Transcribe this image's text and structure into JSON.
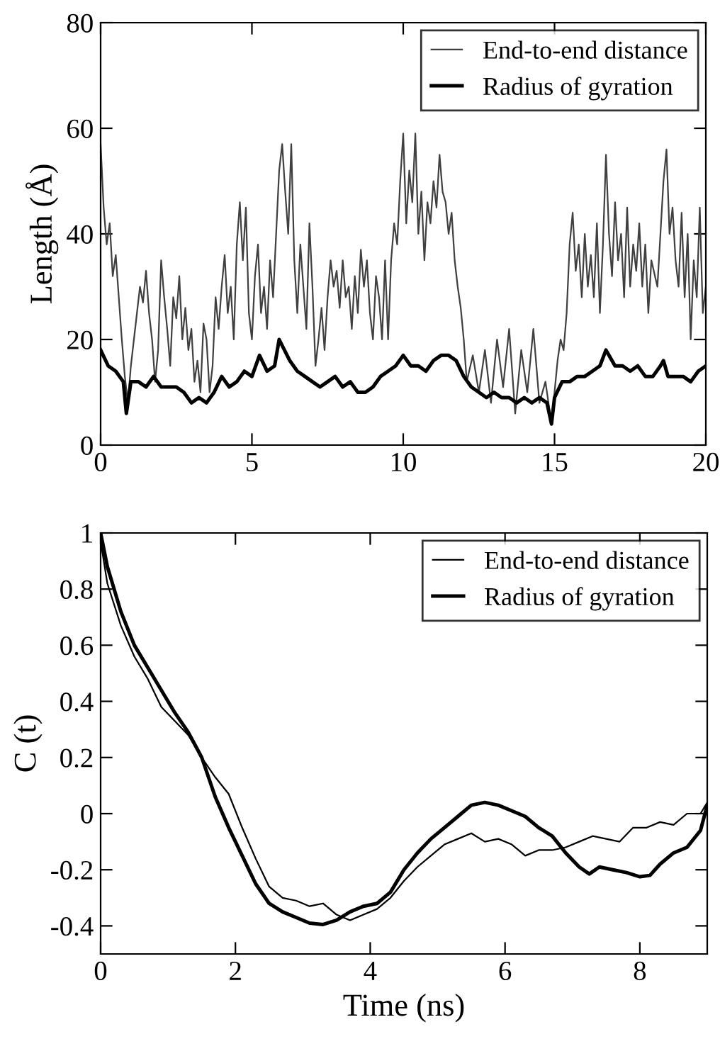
{
  "chart_data": [
    {
      "type": "line",
      "ylabel": "Length (Å)",
      "xlim": [
        0,
        20
      ],
      "ylim": [
        0,
        80
      ],
      "xticks": [
        0,
        5,
        10,
        15,
        20
      ],
      "yticks": [
        0,
        20,
        40,
        60,
        80
      ],
      "legend": "top right",
      "grid": false,
      "series": [
        {
          "name": "End-to-end distance",
          "color": "#404040",
          "x": [
            0,
            0.1,
            0.2,
            0.3,
            0.4,
            0.5,
            0.6,
            0.7,
            0.8,
            0.9,
            1.0,
            1.1,
            1.2,
            1.3,
            1.4,
            1.5,
            1.6,
            1.7,
            1.8,
            1.9,
            2.0,
            2.1,
            2.2,
            2.3,
            2.4,
            2.5,
            2.6,
            2.7,
            2.8,
            2.9,
            3.0,
            3.1,
            3.2,
            3.3,
            3.4,
            3.5,
            3.6,
            3.7,
            3.8,
            3.9,
            4.0,
            4.1,
            4.2,
            4.3,
            4.4,
            4.5,
            4.6,
            4.7,
            4.8,
            4.9,
            5.0,
            5.1,
            5.2,
            5.3,
            5.4,
            5.5,
            5.6,
            5.7,
            5.8,
            5.9,
            6.0,
            6.1,
            6.2,
            6.3,
            6.4,
            6.5,
            6.6,
            6.7,
            6.8,
            6.9,
            7.0,
            7.1,
            7.2,
            7.3,
            7.4,
            7.5,
            7.6,
            7.7,
            7.8,
            7.9,
            8.0,
            8.1,
            8.2,
            8.3,
            8.4,
            8.5,
            8.6,
            8.7,
            8.8,
            8.9,
            9.0,
            9.1,
            9.2,
            9.3,
            9.4,
            9.5,
            9.6,
            9.7,
            9.8,
            9.9,
            10.0,
            10.1,
            10.2,
            10.3,
            10.4,
            10.5,
            10.6,
            10.7,
            10.8,
            10.9,
            11.0,
            11.1,
            11.2,
            11.3,
            11.4,
            11.5,
            11.6,
            11.7,
            11.8,
            11.9,
            12.0,
            12.1,
            12.3,
            12.5,
            12.7,
            12.9,
            13.1,
            13.3,
            13.5,
            13.7,
            13.9,
            14.1,
            14.3,
            14.5,
            14.7,
            14.9,
            15.0,
            15.1,
            15.2,
            15.3,
            15.4,
            15.5,
            15.6,
            15.7,
            15.8,
            15.9,
            16.0,
            16.1,
            16.2,
            16.3,
            16.4,
            16.5,
            16.6,
            16.7,
            16.8,
            16.9,
            17.0,
            17.1,
            17.2,
            17.3,
            17.4,
            17.5,
            17.6,
            17.7,
            17.8,
            17.9,
            18.0,
            18.1,
            18.2,
            18.4,
            18.6,
            18.7,
            18.8,
            18.9,
            19.0,
            19.1,
            19.2,
            19.3,
            19.4,
            19.5,
            19.6,
            19.7,
            19.8,
            19.9,
            20.0
          ],
          "values": [
            57,
            45,
            38,
            42,
            32,
            36,
            28,
            20,
            13,
            8,
            15,
            20,
            25,
            30,
            27,
            33,
            25,
            20,
            12,
            18,
            35,
            28,
            22,
            15,
            28,
            24,
            32,
            20,
            26,
            18,
            22,
            12,
            16,
            10,
            23,
            20,
            10,
            15,
            28,
            22,
            30,
            36,
            25,
            30,
            20,
            38,
            46,
            35,
            45,
            25,
            20,
            32,
            38,
            25,
            30,
            22,
            35,
            28,
            40,
            52,
            57,
            48,
            40,
            57,
            35,
            25,
            38,
            30,
            22,
            42,
            30,
            15,
            20,
            26,
            18,
            28,
            35,
            30,
            33,
            26,
            35,
            28,
            30,
            22,
            32,
            25,
            37,
            30,
            35,
            25,
            20,
            32,
            28,
            20,
            35,
            20,
            35,
            42,
            38,
            50,
            59,
            42,
            52,
            46,
            59,
            40,
            48,
            35,
            46,
            42,
            50,
            45,
            55,
            48,
            46,
            40,
            44,
            35,
            30,
            26,
            20,
            12,
            17,
            10,
            18,
            8,
            20,
            11,
            22,
            6,
            18,
            10,
            22,
            8,
            12,
            4,
            10,
            16,
            20,
            18,
            25,
            38,
            44,
            33,
            38,
            28,
            40,
            30,
            36,
            28,
            42,
            25,
            38,
            55,
            40,
            32,
            46,
            35,
            40,
            28,
            45,
            30,
            38,
            33,
            42,
            30,
            38,
            25,
            35,
            30,
            50,
            56,
            40,
            45,
            35,
            30,
            44,
            28,
            40,
            20,
            35,
            28,
            45,
            25,
            30
          ]
        },
        {
          "name": "Radius of gyration",
          "color": "#000000",
          "x": [
            0,
            0.25,
            0.5,
            0.75,
            0.85,
            1.0,
            1.25,
            1.5,
            1.75,
            2.0,
            2.25,
            2.5,
            2.75,
            3.0,
            3.25,
            3.5,
            3.75,
            4.0,
            4.25,
            4.5,
            4.75,
            5.0,
            5.25,
            5.5,
            5.75,
            5.9,
            6.25,
            6.5,
            6.75,
            7.0,
            7.25,
            7.5,
            7.75,
            8.0,
            8.25,
            8.5,
            8.75,
            9.0,
            9.25,
            9.5,
            9.75,
            10.0,
            10.25,
            10.5,
            10.75,
            11.0,
            11.25,
            11.5,
            11.75,
            12.0,
            12.25,
            12.5,
            12.75,
            13.0,
            13.25,
            13.5,
            13.75,
            14.0,
            14.25,
            14.5,
            14.75,
            14.9,
            15.0,
            15.25,
            15.5,
            15.75,
            16.0,
            16.25,
            16.5,
            16.7,
            17.0,
            17.25,
            17.5,
            17.75,
            18.0,
            18.25,
            18.5,
            18.6,
            18.75,
            19.0,
            19.25,
            19.5,
            19.75,
            20
          ],
          "values": [
            18,
            15,
            14,
            12,
            6,
            12,
            12,
            11,
            13,
            11,
            11,
            11,
            10,
            8,
            9,
            8,
            10,
            13,
            11,
            12,
            14,
            13,
            17,
            14,
            15,
            20,
            16,
            14,
            13,
            12,
            11,
            12,
            13,
            11,
            12,
            10,
            10,
            11,
            13,
            14,
            15,
            17,
            15,
            15,
            14,
            16,
            17,
            17,
            16,
            13,
            11,
            10,
            9,
            10,
            9,
            9,
            8,
            9,
            8,
            9,
            8,
            4,
            9,
            12,
            12,
            13,
            13,
            14,
            15,
            18,
            15,
            15,
            14,
            15,
            13,
            13,
            15,
            16,
            13,
            13,
            13,
            12,
            14,
            15
          ]
        }
      ]
    },
    {
      "type": "line",
      "xlabel": "Time (ns)",
      "ylabel": "C (t)",
      "xlim": [
        0,
        9
      ],
      "ylim": [
        -0.5,
        1
      ],
      "xticks": [
        0,
        2,
        4,
        6,
        8
      ],
      "yticks": [
        -0.4,
        -0.2,
        0,
        0.2,
        0.4,
        0.6,
        0.8,
        1
      ],
      "legend": "top right",
      "grid": false,
      "series": [
        {
          "name": "End-to-end distance",
          "color": "#000000",
          "x": [
            0,
            0.1,
            0.3,
            0.5,
            0.7,
            0.9,
            1.1,
            1.3,
            1.5,
            1.7,
            1.9,
            2.1,
            2.3,
            2.5,
            2.7,
            2.9,
            3.1,
            3.3,
            3.5,
            3.7,
            3.9,
            4.1,
            4.3,
            4.5,
            4.7,
            4.9,
            5.1,
            5.3,
            5.5,
            5.7,
            5.9,
            6.1,
            6.3,
            6.5,
            6.7,
            6.9,
            7.1,
            7.3,
            7.5,
            7.7,
            7.9,
            8.1,
            8.3,
            8.5,
            8.7,
            8.9,
            9.0
          ],
          "values": [
            0.97,
            0.82,
            0.67,
            0.56,
            0.48,
            0.38,
            0.33,
            0.28,
            0.2,
            0.13,
            0.07,
            -0.05,
            -0.16,
            -0.26,
            -0.3,
            -0.31,
            -0.33,
            -0.32,
            -0.36,
            -0.38,
            -0.36,
            -0.34,
            -0.3,
            -0.24,
            -0.19,
            -0.15,
            -0.11,
            -0.09,
            -0.07,
            -0.1,
            -0.09,
            -0.11,
            -0.15,
            -0.13,
            -0.13,
            -0.12,
            -0.1,
            -0.08,
            -0.09,
            -0.1,
            -0.05,
            -0.05,
            -0.03,
            -0.04,
            0.0,
            0.0,
            0.04
          ]
        },
        {
          "name": "Radius of gyration",
          "color": "#000000",
          "x": [
            0,
            0.1,
            0.3,
            0.5,
            0.7,
            0.9,
            1.1,
            1.3,
            1.5,
            1.7,
            1.9,
            2.1,
            2.3,
            2.5,
            2.7,
            2.9,
            3.1,
            3.3,
            3.5,
            3.7,
            3.9,
            4.1,
            4.3,
            4.5,
            4.7,
            4.9,
            5.1,
            5.3,
            5.5,
            5.7,
            5.9,
            6.1,
            6.3,
            6.5,
            6.7,
            6.9,
            7.1,
            7.25,
            7.4,
            7.6,
            7.8,
            8.0,
            8.15,
            8.3,
            8.5,
            8.7,
            8.9,
            9.0
          ],
          "values": [
            1,
            0.88,
            0.72,
            0.6,
            0.52,
            0.44,
            0.36,
            0.29,
            0.2,
            0.06,
            -0.05,
            -0.15,
            -0.25,
            -0.32,
            -0.35,
            -0.37,
            -0.39,
            -0.395,
            -0.38,
            -0.35,
            -0.33,
            -0.32,
            -0.28,
            -0.2,
            -0.14,
            -0.09,
            -0.05,
            -0.01,
            0.03,
            0.04,
            0.03,
            0.01,
            -0.01,
            -0.05,
            -0.08,
            -0.14,
            -0.19,
            -0.215,
            -0.19,
            -0.2,
            -0.21,
            -0.225,
            -0.22,
            -0.18,
            -0.14,
            -0.12,
            -0.06,
            0.03
          ]
        }
      ]
    }
  ]
}
